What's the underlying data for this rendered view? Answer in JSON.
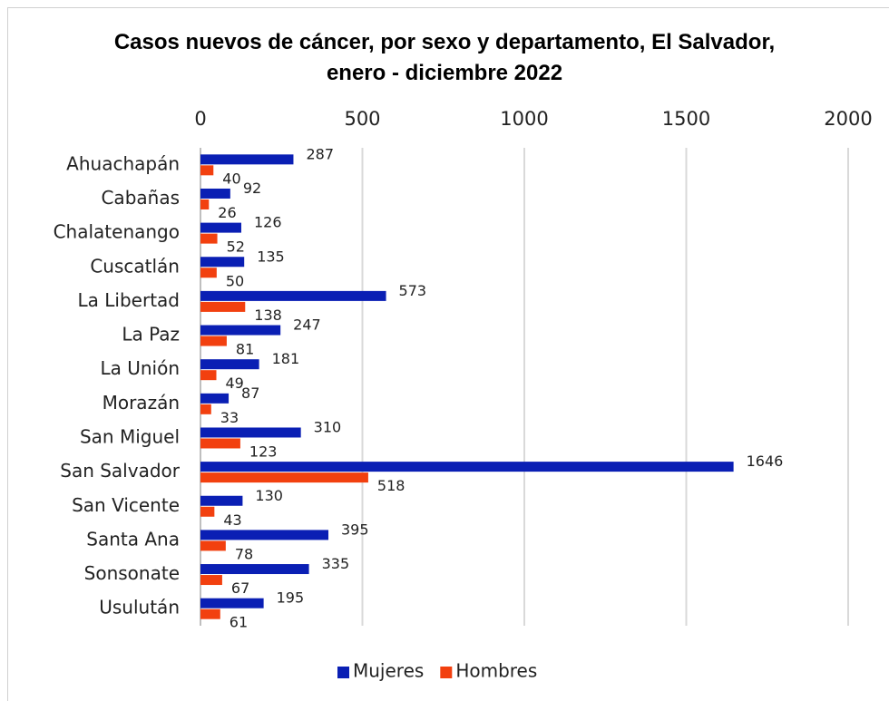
{
  "chart_data": {
    "type": "bar",
    "orientation": "horizontal",
    "title": "Casos nuevos de cáncer, por sexo y departamento, El Salvador, enero - diciembre 2022",
    "categories": [
      "Ahuachapán",
      "Cabañas",
      "Chalatenango",
      "Cuscatlán",
      "La Libertad",
      "La Paz",
      "La Unión",
      "Morazán",
      "San Miguel",
      "San Salvador",
      "San Vicente",
      "Santa Ana",
      "Sonsonate",
      "Usulután"
    ],
    "series": [
      {
        "name": "Mujeres",
        "color": "#0a1fb4",
        "values": [
          287,
          92,
          126,
          135,
          573,
          247,
          181,
          87,
          310,
          1646,
          130,
          395,
          335,
          195
        ]
      },
      {
        "name": "Hombres",
        "color": "#f2400f",
        "values": [
          40,
          26,
          52,
          50,
          138,
          81,
          49,
          33,
          123,
          518,
          43,
          78,
          67,
          61
        ]
      }
    ],
    "xlim": [
      0,
      2000
    ],
    "xticks": [
      0,
      500,
      1000,
      1500,
      2000
    ],
    "grid": true,
    "legend": "bottom"
  }
}
